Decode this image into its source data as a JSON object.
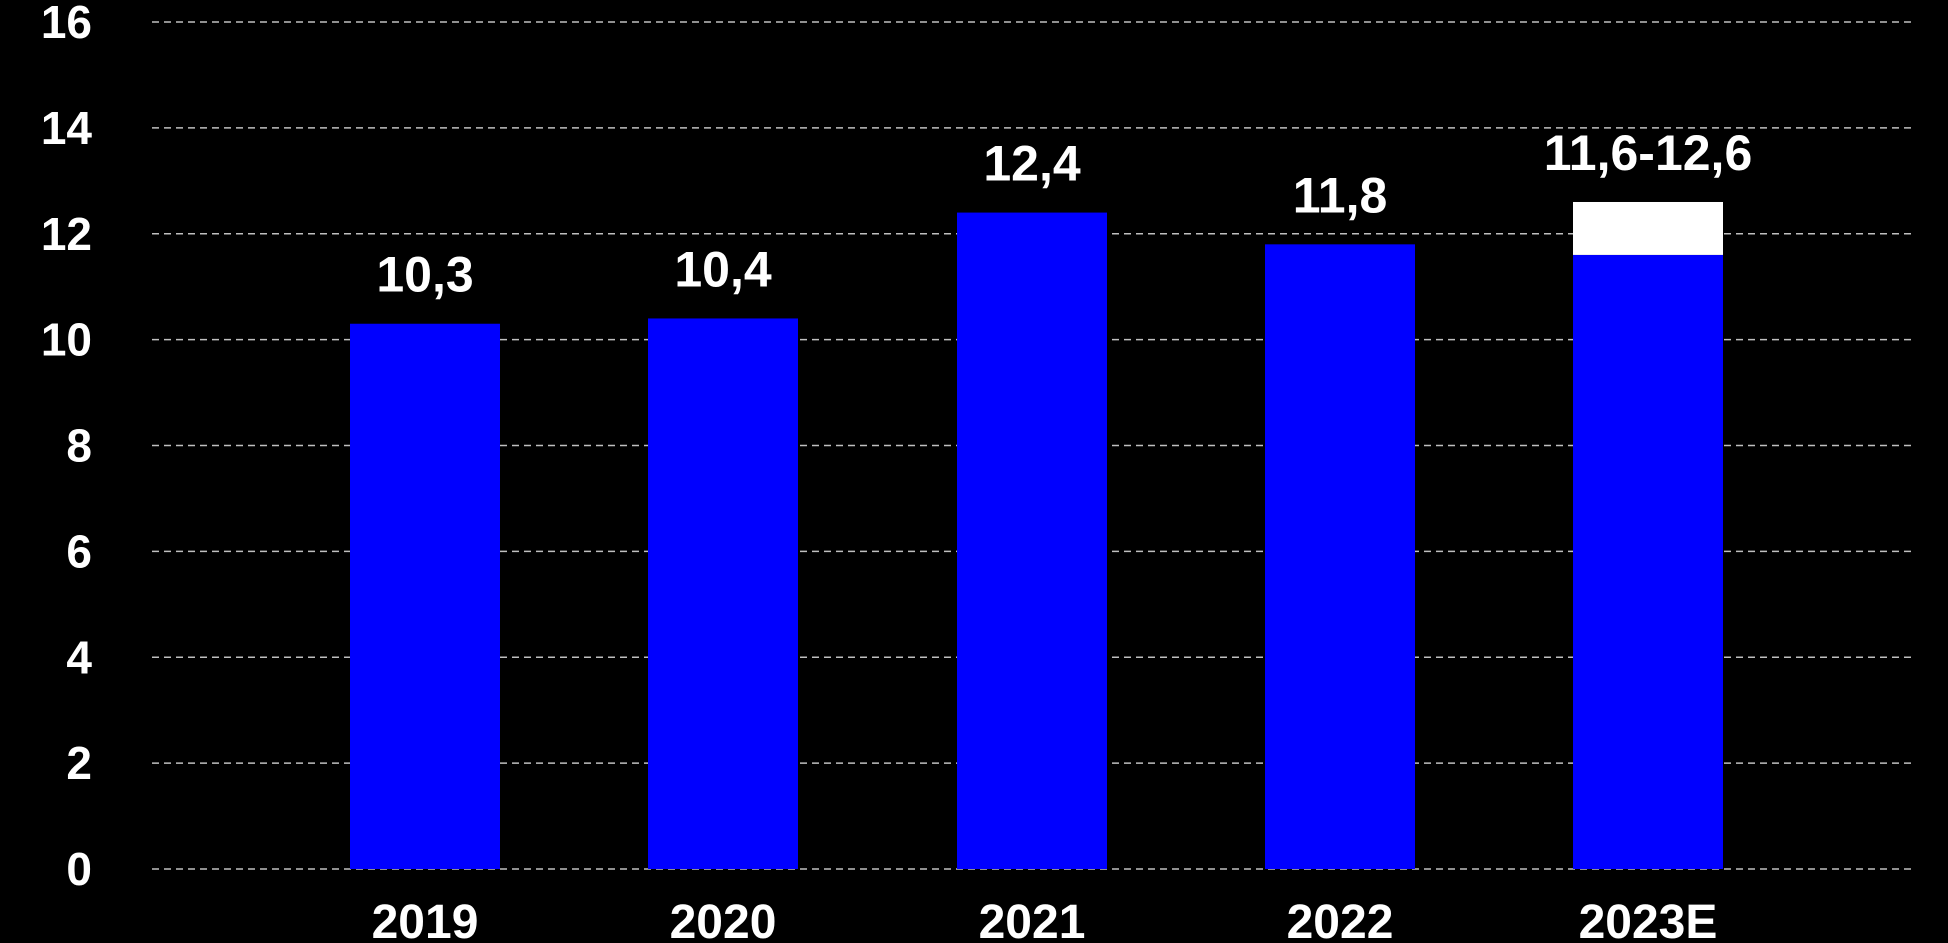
{
  "chart_data": {
    "type": "bar",
    "categories": [
      "2019",
      "2020",
      "2021",
      "2022",
      "2023E"
    ],
    "values": [
      10.3,
      10.4,
      12.4,
      11.8,
      12.6
    ],
    "range_low": [
      null,
      null,
      null,
      null,
      11.6
    ],
    "data_labels": [
      "10,3",
      "10,4",
      "12,4",
      "11,8",
      "11,6-12,6"
    ],
    "title": "",
    "xlabel": "",
    "ylabel": "",
    "ylim": [
      0,
      16
    ],
    "yticks": [
      0,
      2,
      4,
      6,
      8,
      10,
      12,
      14,
      16
    ],
    "ytick_labels": [
      "0",
      "2",
      "4",
      "6",
      "8",
      "10",
      "12",
      "14",
      "16"
    ],
    "grid": true,
    "legend": "none",
    "colors": {
      "background": "#000000",
      "bar": "#0000ff",
      "range": "#ffffff",
      "text": "#ffffff",
      "grid": "#bfbfbf"
    }
  }
}
